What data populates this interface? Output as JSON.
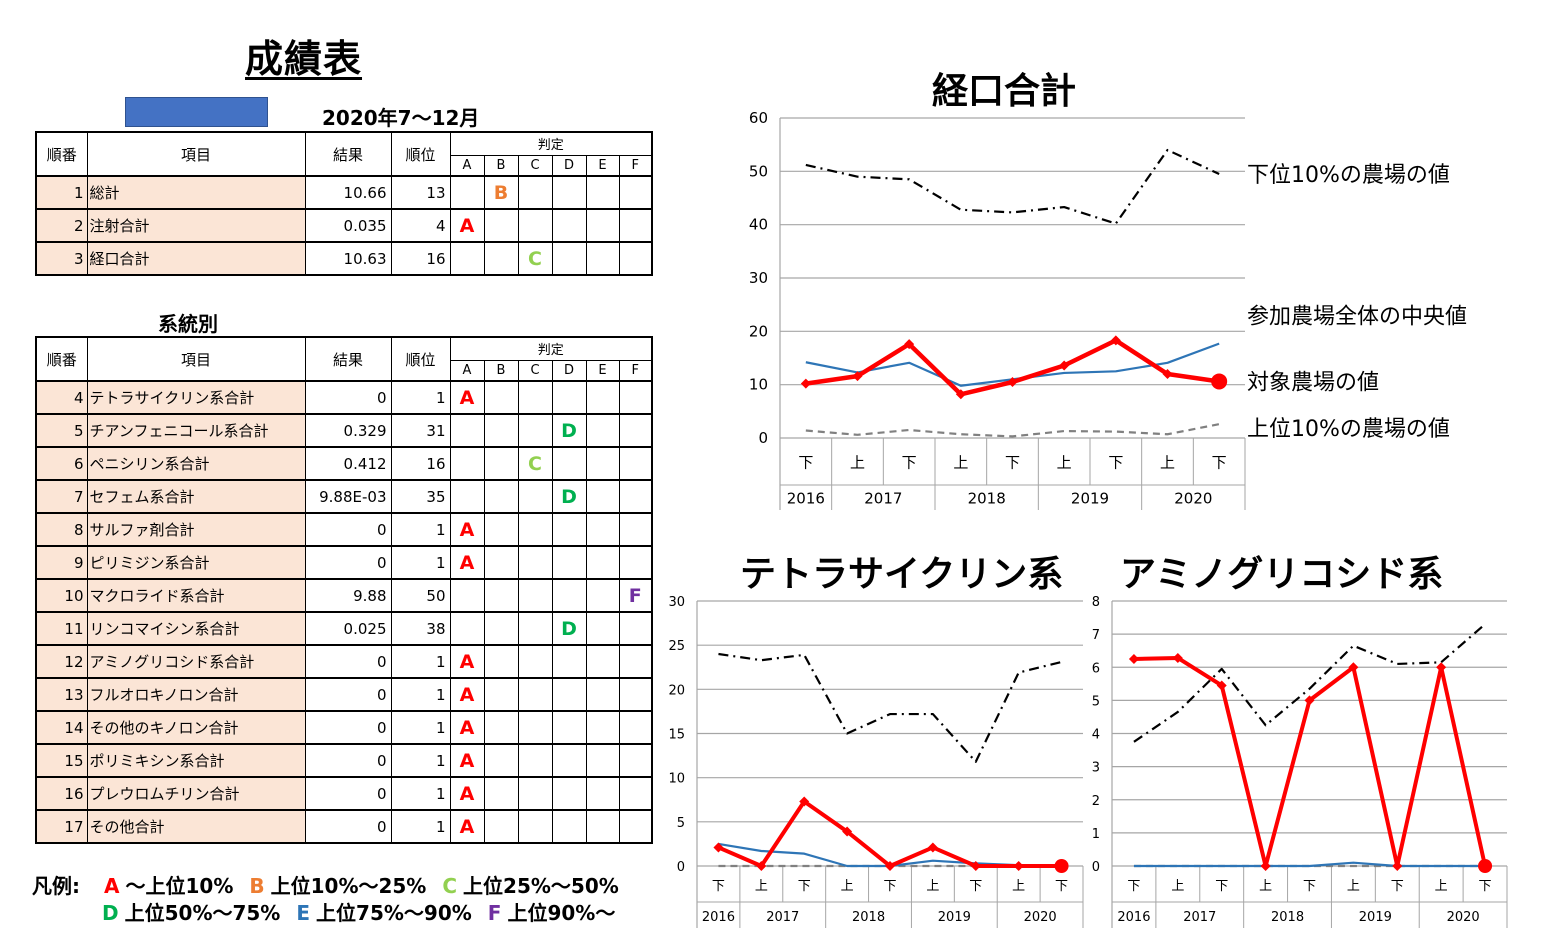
{
  "title": "成績表",
  "period": "2020年7～12月",
  "summary_table": {
    "headers": {
      "no": "順番",
      "item": "項目",
      "result": "結果",
      "rank": "順位",
      "judge": "判定",
      "grades": [
        "A",
        "B",
        "C",
        "D",
        "E",
        "F"
      ]
    },
    "rows": [
      {
        "no": "1",
        "item": "総計",
        "result": "10.66",
        "rank": "13",
        "grade": "B"
      },
      {
        "no": "2",
        "item": "注射合計",
        "result": "0.035",
        "rank": "4",
        "grade": "A"
      },
      {
        "no": "3",
        "item": "経口合計",
        "result": "10.63",
        "rank": "16",
        "grade": "C"
      }
    ]
  },
  "lineage_title": "系統別",
  "lineage_table": {
    "headers": {
      "no": "順番",
      "item": "項目",
      "result": "結果",
      "rank": "順位",
      "judge": "判定",
      "grades": [
        "A",
        "B",
        "C",
        "D",
        "E",
        "F"
      ]
    },
    "rows": [
      {
        "no": "4",
        "item": "テトラサイクリン系合計",
        "result": "0",
        "rank": "1",
        "grade": "A"
      },
      {
        "no": "5",
        "item": "チアンフェニコール系合計",
        "result": "0.329",
        "rank": "31",
        "grade": "D"
      },
      {
        "no": "6",
        "item": "ペニシリン系合計",
        "result": "0.412",
        "rank": "16",
        "grade": "C"
      },
      {
        "no": "7",
        "item": "セフェム系合計",
        "result": "9.88E-03",
        "rank": "35",
        "grade": "D"
      },
      {
        "no": "8",
        "item": "サルファ剤合計",
        "result": "0",
        "rank": "1",
        "grade": "A"
      },
      {
        "no": "9",
        "item": "ピリミジン系合計",
        "result": "0",
        "rank": "1",
        "grade": "A"
      },
      {
        "no": "10",
        "item": "マクロライド系合計",
        "result": "9.88",
        "rank": "50",
        "grade": "F"
      },
      {
        "no": "11",
        "item": "リンコマイシン系合計",
        "result": "0.025",
        "rank": "38",
        "grade": "D"
      },
      {
        "no": "12",
        "item": "アミノグリコシド系合計",
        "result": "0",
        "rank": "1",
        "grade": "A"
      },
      {
        "no": "13",
        "item": "フルオロキノロン合計",
        "result": "0",
        "rank": "1",
        "grade": "A"
      },
      {
        "no": "14",
        "item": "その他のキノロン合計",
        "result": "0",
        "rank": "1",
        "grade": "A"
      },
      {
        "no": "15",
        "item": "ポリミキシン系合計",
        "result": "0",
        "rank": "1",
        "grade": "A"
      },
      {
        "no": "16",
        "item": "プレウロムチリン合計",
        "result": "0",
        "rank": "1",
        "grade": "A"
      },
      {
        "no": "17",
        "item": "その他合計",
        "result": "0",
        "rank": "1",
        "grade": "A"
      }
    ]
  },
  "legend": {
    "label": "凡例:",
    "items": [
      {
        "grade": "A",
        "text": "～上位10%",
        "color": "#ff0000"
      },
      {
        "grade": "B",
        "text": "上位10%～25%",
        "color": "#ed7d31"
      },
      {
        "grade": "C",
        "text": "上位25%～50%",
        "color": "#92d050"
      },
      {
        "grade": "D",
        "text": "上位50%～75%",
        "color": "#00b050"
      },
      {
        "grade": "E",
        "text": "上位75%～90%",
        "color": "#2e75b6"
      },
      {
        "grade": "F",
        "text": "上位90%～",
        "color": "#7030a0"
      }
    ]
  },
  "grade_colors": {
    "A": "#ff0000",
    "B": "#ed7d31",
    "C": "#92d050",
    "D": "#00b050",
    "E": "#2e75b6",
    "F": "#7030a0"
  },
  "chart_data": [
    {
      "type": "line",
      "title": "経口合計",
      "categories": [
        "下",
        "上",
        "下",
        "上",
        "下",
        "上",
        "下",
        "上",
        "下"
      ],
      "year_labels": [
        "2016",
        "2017",
        "2018",
        "2019",
        "2020"
      ],
      "ylim": [
        0,
        60
      ],
      "yticks": [
        0,
        10,
        20,
        30,
        40,
        50,
        60
      ],
      "grid": true,
      "series": [
        {
          "name": "下位10%の農場の値",
          "color": "#000000",
          "style": "dashdot",
          "values": [
            51.2,
            49.0,
            48.5,
            42.8,
            42.3,
            43.3,
            40.2,
            54.0,
            49.5
          ]
        },
        {
          "name": "参加農場全体の中央値",
          "color": "#2e75b6",
          "style": "solid",
          "values": [
            14.2,
            12.3,
            14.1,
            9.8,
            11.0,
            12.2,
            12.5,
            14.1,
            17.7
          ]
        },
        {
          "name": "対象農場の値",
          "color": "#ff0000",
          "style": "bold",
          "values": [
            10.2,
            11.6,
            17.6,
            8.2,
            10.5,
            13.6,
            18.3,
            12.0,
            10.6
          ]
        },
        {
          "name": "上位10%の農場の値",
          "color": "#808080",
          "style": "dashed",
          "values": [
            1.4,
            0.6,
            1.5,
            0.7,
            0.3,
            1.3,
            1.2,
            0.7,
            2.6
          ]
        }
      ]
    },
    {
      "type": "line",
      "title": "テトラサイクリン系",
      "categories": [
        "下",
        "上",
        "下",
        "上",
        "下",
        "上",
        "下",
        "上",
        "下"
      ],
      "year_labels": [
        "2016",
        "2017",
        "2018",
        "2019",
        "2020"
      ],
      "ylim": [
        0,
        30
      ],
      "yticks": [
        0,
        5,
        10,
        15,
        20,
        25,
        30
      ],
      "grid": true,
      "series": [
        {
          "color": "#000000",
          "style": "dashdot",
          "values": [
            24.0,
            23.3,
            23.9,
            15.0,
            17.2,
            17.2,
            11.8,
            21.9,
            23.1
          ]
        },
        {
          "color": "#2e75b6",
          "style": "solid",
          "values": [
            2.5,
            1.7,
            1.4,
            0.0,
            0.0,
            0.6,
            0.3,
            0.1,
            0.1
          ]
        },
        {
          "color": "#ff0000",
          "style": "bold",
          "values": [
            2.1,
            0.0,
            7.3,
            3.9,
            0.0,
            2.1,
            0.0,
            0.0,
            0.0
          ]
        },
        {
          "color": "#808080",
          "style": "dashed",
          "values": [
            0.0,
            0.0,
            0.0,
            0.0,
            0.0,
            0.0,
            0.0,
            0.0,
            0.0
          ]
        }
      ]
    },
    {
      "type": "line",
      "title": "アミノグリコシド系",
      "categories": [
        "下",
        "上",
        "下",
        "上",
        "下",
        "上",
        "下",
        "上",
        "下"
      ],
      "year_labels": [
        "2016",
        "2017",
        "2018",
        "2019",
        "2020"
      ],
      "ylim": [
        0,
        8
      ],
      "yticks": [
        0,
        1,
        2,
        3,
        4,
        5,
        6,
        7,
        8
      ],
      "grid": true,
      "series": [
        {
          "color": "#000000",
          "style": "dashdot",
          "values": [
            3.75,
            4.65,
            5.95,
            4.25,
            5.35,
            6.65,
            6.1,
            6.15,
            7.3
          ]
        },
        {
          "color": "#2e75b6",
          "style": "solid",
          "values": [
            0.0,
            0.0,
            0.0,
            0.0,
            0.0,
            0.1,
            0.0,
            0.0,
            0.0
          ]
        },
        {
          "color": "#ff0000",
          "style": "bold",
          "values": [
            6.25,
            6.28,
            5.45,
            0.0,
            5.0,
            6.0,
            0.0,
            6.0,
            0.0
          ]
        },
        {
          "color": "#808080",
          "style": "dashed",
          "values": [
            0.0,
            0.0,
            0.0,
            0.0,
            0.0,
            0.0,
            0.0,
            0.0,
            0.0
          ]
        }
      ]
    }
  ]
}
